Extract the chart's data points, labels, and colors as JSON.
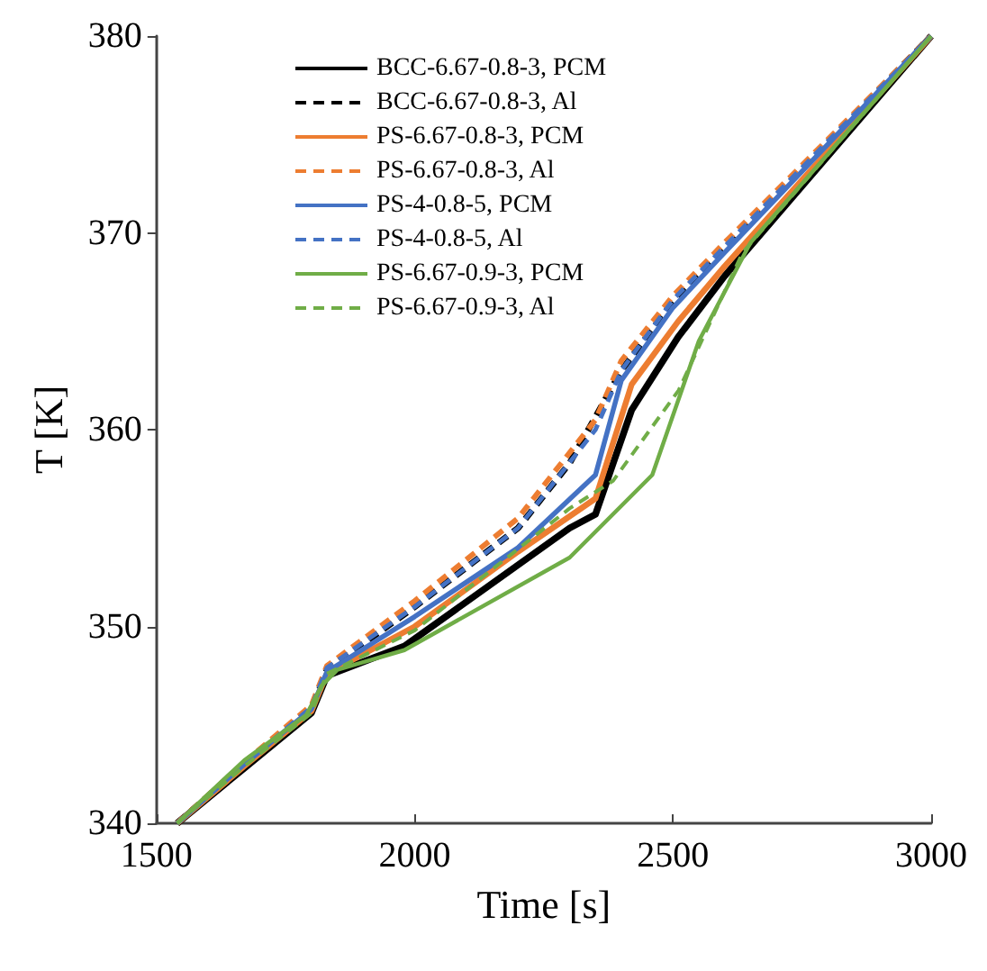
{
  "chart_data": {
    "type": "line",
    "xlabel": "Time [s]",
    "ylabel": "T [K]",
    "xlim": [
      1500,
      3000
    ],
    "xticks": [
      1500,
      2000,
      2500,
      3000
    ],
    "ylim": [
      340,
      380
    ],
    "yticks": [
      340,
      350,
      360,
      370,
      380
    ],
    "grid": false,
    "legend": "top left",
    "marker": "none",
    "series": [
      {
        "name": "BCC-6.67-0.8-3, PCM",
        "color": "#000000",
        "line_style": "solid",
        "x": [
          1540,
          1670,
          1800,
          1830,
          1980,
          2300,
          2350,
          2420,
          2510,
          2600,
          3000
        ],
        "values": [
          340,
          342.8,
          345.6,
          347.5,
          349,
          355,
          355.7,
          361,
          364.7,
          367.8,
          380
        ]
      },
      {
        "name": "BCC-6.67-0.8-3, Al",
        "color": "#000000",
        "line_style": "dashed",
        "x": [
          1540,
          1670,
          1800,
          1830,
          2000,
          2200,
          2300,
          2400,
          2500,
          2600,
          3000
        ],
        "values": [
          340,
          343,
          345.8,
          347.8,
          351,
          355,
          358.3,
          363,
          366.5,
          369.2,
          380
        ]
      },
      {
        "name": "PS-6.67-0.8-3, PCM",
        "color": "#ed7d31",
        "line_style": "solid",
        "x": [
          1540,
          1670,
          1800,
          1830,
          2000,
          2200,
          2350,
          2420,
          2510,
          2600,
          3000
        ],
        "values": [
          340,
          342.9,
          345.7,
          347.6,
          350,
          353.8,
          356.5,
          362.3,
          365.5,
          368.3,
          380
        ]
      },
      {
        "name": "PS-6.67-0.8-3, Al",
        "color": "#ed7d31",
        "line_style": "dashed",
        "x": [
          1540,
          1670,
          1800,
          1830,
          2000,
          2200,
          2350,
          2400,
          2500,
          2600,
          3000
        ],
        "values": [
          340,
          343.1,
          346,
          348,
          351.3,
          355.5,
          360.5,
          363.5,
          366.8,
          369.5,
          380
        ]
      },
      {
        "name": "PS-4-0.8-5, PCM",
        "color": "#4472c4",
        "line_style": "solid",
        "x": [
          1540,
          1670,
          1800,
          1830,
          2000,
          2200,
          2350,
          2400,
          2500,
          2600,
          3000
        ],
        "values": [
          340,
          343,
          345.8,
          347.7,
          350.5,
          354,
          357.7,
          362.5,
          366.2,
          369,
          380
        ]
      },
      {
        "name": "PS-4-0.8-5, Al",
        "color": "#4472c4",
        "line_style": "dashed",
        "x": [
          1540,
          1670,
          1800,
          1830,
          2000,
          2200,
          2350,
          2400,
          2500,
          2600,
          3000
        ],
        "values": [
          340,
          343,
          345.9,
          347.9,
          351,
          355,
          360,
          363,
          366.6,
          369.3,
          380
        ]
      },
      {
        "name": "PS-6.67-0.9-3, PCM",
        "color": "#70ad47",
        "line_style": "solid",
        "x": [
          1540,
          1670,
          1790,
          1820,
          1850,
          1980,
          2300,
          2460,
          2550,
          2650,
          3000
        ],
        "values": [
          340,
          343.2,
          345.5,
          347,
          347.8,
          348.8,
          353.5,
          357.7,
          364.5,
          369.5,
          380
        ]
      },
      {
        "name": "PS-6.67-0.9-3, Al",
        "color": "#70ad47",
        "line_style": "dashed",
        "x": [
          1540,
          1670,
          1800,
          1830,
          2000,
          2300,
          2384,
          2511,
          2635,
          3000
        ],
        "values": [
          340,
          342.9,
          345.6,
          347.6,
          349.8,
          356,
          357.4,
          362,
          369,
          380
        ]
      }
    ]
  }
}
